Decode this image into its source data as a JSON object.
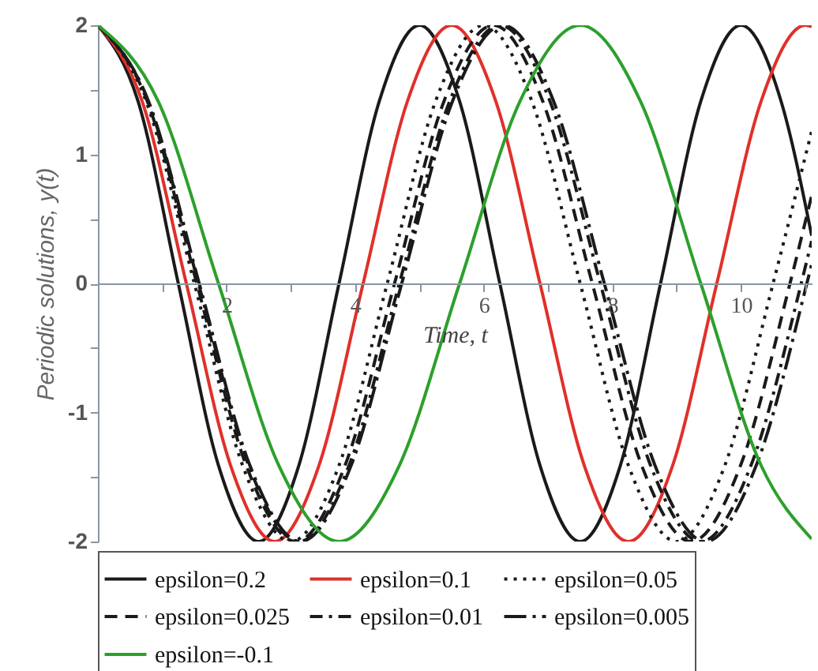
{
  "chart_data": {
    "type": "line",
    "xlabel": "Time, t",
    "ylabel": "Periodic solutions, y(t)",
    "xlim": [
      0,
      11.1
    ],
    "ylim": [
      -2,
      2
    ],
    "xticks": [
      {
        "value": 1,
        "label": null
      },
      2,
      {
        "value": 3,
        "label": null
      },
      4,
      {
        "value": 5,
        "label": null
      },
      6,
      {
        "value": 7,
        "label": null
      },
      8,
      {
        "value": 9,
        "label": null
      },
      10,
      {
        "value": 11,
        "label": null
      }
    ],
    "yticks": [
      -2,
      {
        "value": -1.5,
        "label": null
      },
      -1,
      {
        "value": -0.5,
        "label": null
      },
      0,
      {
        "value": 0.5,
        "label": null
      },
      1,
      {
        "value": 1.5,
        "label": null
      },
      2
    ],
    "grid": false,
    "legend": "bottom",
    "marker": "none",
    "series": [
      {
        "name": "epsilon=0.2",
        "color": "#1a1a1a",
        "line_style": "solid",
        "x": [
          0,
          0.625,
          1.25,
          1.875,
          2.5,
          3.125,
          3.75,
          4.375,
          5,
          5.625,
          6.25,
          6.875,
          7.5,
          8.125,
          8.75,
          9.375,
          10,
          10.625,
          11.1
        ],
        "values": [
          2,
          1.41,
          0,
          -1.41,
          -2,
          -1.41,
          0,
          1.41,
          2,
          1.41,
          0,
          -1.41,
          -2,
          -1.41,
          0,
          1.41,
          2,
          1.41,
          0.37
        ]
      },
      {
        "name": "epsilon=0.1",
        "color": "#e0302a",
        "line_style": "solid",
        "x": [
          0,
          0.688,
          1.375,
          2.063,
          2.75,
          3.438,
          4.125,
          4.813,
          5.5,
          6.188,
          6.875,
          7.563,
          8.25,
          8.938,
          9.625,
          10.313,
          11,
          11.1
        ],
        "values": [
          2,
          1.41,
          0,
          -1.41,
          -2,
          -1.41,
          0,
          1.41,
          2,
          1.41,
          0,
          -1.41,
          -2,
          -1.41,
          0,
          1.41,
          2,
          1.99
        ]
      },
      {
        "name": "epsilon=0.05",
        "color": "#1a1a1a",
        "line_style": "dotted",
        "x": [
          0,
          0.75,
          1.5,
          2.25,
          3,
          3.75,
          4.5,
          5.25,
          6,
          6.75,
          7.5,
          8.25,
          9,
          9.75,
          10.5,
          11.1
        ],
        "values": [
          2,
          1.41,
          0,
          -1.41,
          -2,
          -1.41,
          0,
          1.41,
          2,
          1.41,
          0,
          -1.41,
          -2,
          -1.41,
          0,
          1.18
        ]
      },
      {
        "name": "epsilon=0.025",
        "color": "#1a1a1a",
        "line_style": "dashed",
        "x": [
          0,
          0.769,
          1.538,
          2.306,
          3.075,
          3.844,
          4.613,
          5.381,
          6.15,
          6.919,
          7.688,
          8.456,
          9.225,
          9.994,
          10.763,
          11.1
        ],
        "values": [
          2,
          1.41,
          0,
          -1.41,
          -2,
          -1.41,
          0,
          1.41,
          2,
          1.41,
          0,
          -1.41,
          -2,
          -1.41,
          0,
          0.68
        ]
      },
      {
        "name": "epsilon=0.01",
        "color": "#1a1a1a",
        "line_style": "dashdot",
        "x": [
          0,
          0.781,
          1.563,
          2.344,
          3.125,
          3.906,
          4.688,
          5.469,
          6.25,
          7.031,
          7.813,
          8.594,
          9.375,
          10.156,
          10.938,
          11.1
        ],
        "values": [
          2,
          1.41,
          0,
          -1.41,
          -2,
          -1.41,
          0,
          1.41,
          2,
          1.41,
          0,
          -1.41,
          -2,
          -1.41,
          0,
          0.33
        ]
      },
      {
        "name": "epsilon=0.005",
        "color": "#1a1a1a",
        "line_style": "longdashdot",
        "x": [
          0,
          0.788,
          1.575,
          2.363,
          3.15,
          3.938,
          4.725,
          5.513,
          6.3,
          7.088,
          7.875,
          8.663,
          9.45,
          10.238,
          11.025,
          11.1
        ],
        "values": [
          2,
          1.41,
          0,
          -1.41,
          -2,
          -1.41,
          0,
          1.41,
          2,
          1.41,
          0,
          -1.41,
          -2,
          -1.41,
          0,
          0.15
        ]
      },
      {
        "name": "epsilon=-0.1",
        "color": "#2ca02c",
        "line_style": "solid",
        "x": [
          0,
          0.938,
          1.875,
          2.813,
          3.75,
          4.688,
          5.625,
          6.563,
          7.5,
          8.438,
          9.375,
          10.313,
          11.1
        ],
        "values": [
          2,
          1.41,
          0,
          -1.41,
          -2,
          -1.41,
          0,
          1.41,
          2,
          1.41,
          0,
          -1.41,
          -1.98
        ]
      }
    ]
  }
}
